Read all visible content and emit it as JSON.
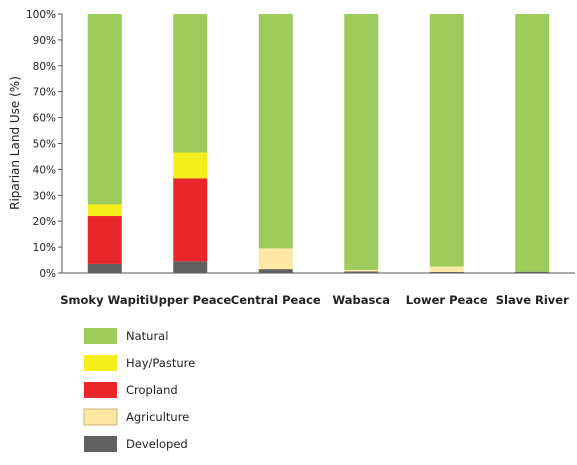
{
  "chart_data": {
    "type": "bar",
    "stacked": true,
    "title": "",
    "xlabel": "",
    "ylabel": "Riparian Land Use (%)",
    "ylim": [
      0,
      100
    ],
    "yticks": [
      "0%",
      "10%",
      "20%",
      "30%",
      "40%",
      "50%",
      "60%",
      "70%",
      "80%",
      "90%",
      "100%"
    ],
    "grid": false,
    "legend_position": "bottom-left",
    "categories": [
      "Smoky Wapiti",
      "Upper Peace",
      "Central Peace",
      "Wabasca",
      "Lower Peace",
      "Slave River"
    ],
    "series": [
      {
        "name": "Developed",
        "color": "#606060",
        "values": [
          3.5,
          4.5,
          1.5,
          0.6,
          0.4,
          0.5
        ]
      },
      {
        "name": "Agriculture",
        "color": "#fde7a5",
        "values": [
          0,
          0,
          8,
          0.6,
          2.1,
          0
        ]
      },
      {
        "name": "Cropland",
        "color": "#e9262a",
        "values": [
          18.5,
          32,
          0,
          0,
          0,
          0
        ]
      },
      {
        "name": "Hay/Pasture",
        "color": "#f5ee1a",
        "values": [
          4.5,
          10,
          0,
          0,
          0,
          0
        ]
      },
      {
        "name": "Natural",
        "color": "#9dcc5d",
        "values": [
          73.5,
          53.5,
          90.5,
          98.8,
          97.5,
          99.5
        ]
      }
    ],
    "legend_order": [
      "Natural",
      "Hay/Pasture",
      "Cropland",
      "Agriculture",
      "Developed"
    ]
  }
}
